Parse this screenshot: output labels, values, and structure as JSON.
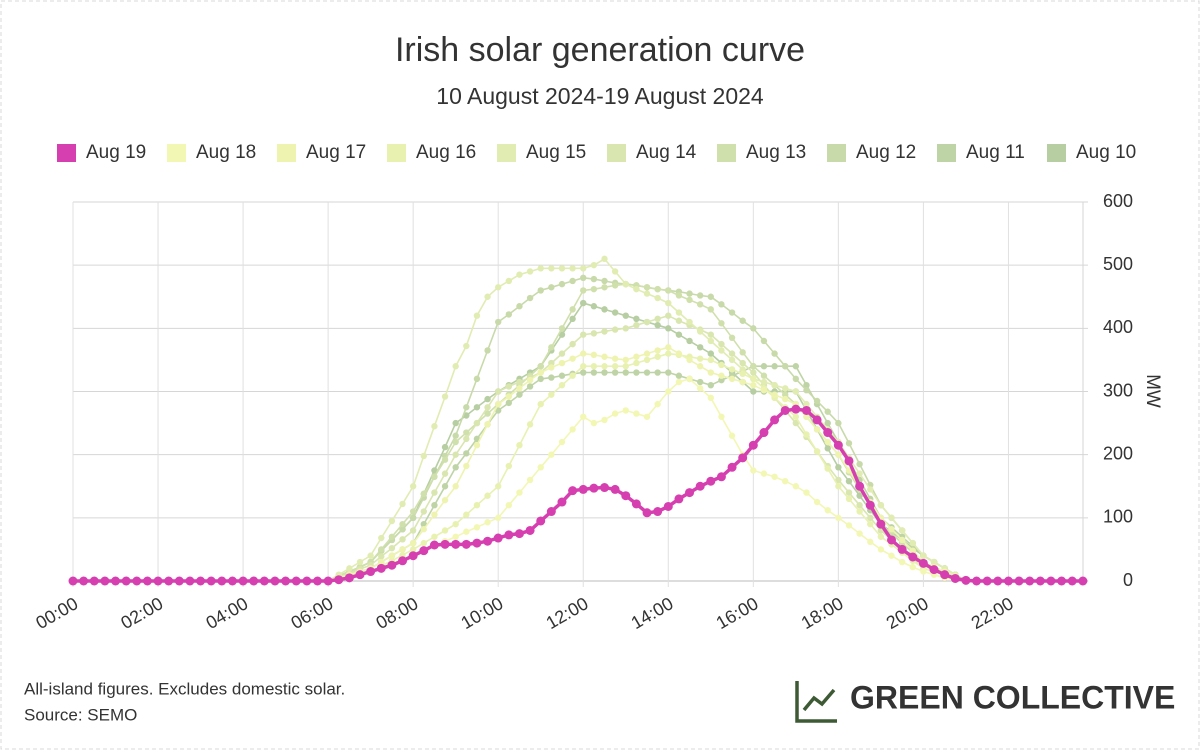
{
  "chart_data": {
    "type": "line",
    "title": "Irish solar generation curve",
    "subtitle": "10 August 2024-19 August 2024",
    "y_label": "MW",
    "notes": [
      "All-island figures. Excludes domestic solar.",
      "Source: SEMO"
    ],
    "brand": "GREEN COLLECTIVE",
    "ylim": [
      0,
      600
    ],
    "yticks": [
      0,
      100,
      200,
      300,
      400,
      500,
      600
    ],
    "grid": true,
    "legend": "top",
    "categories": [
      "00:00",
      null,
      null,
      null,
      null,
      null,
      null,
      null,
      "02:00",
      null,
      null,
      null,
      null,
      null,
      null,
      null,
      "04:00",
      null,
      null,
      null,
      null,
      null,
      null,
      null,
      "06:00",
      null,
      null,
      null,
      null,
      null,
      null,
      null,
      "08:00",
      null,
      null,
      null,
      null,
      null,
      null,
      null,
      "10:00",
      null,
      null,
      null,
      null,
      null,
      null,
      null,
      "12:00",
      null,
      null,
      null,
      null,
      null,
      null,
      null,
      "14:00",
      null,
      null,
      null,
      null,
      null,
      null,
      null,
      "16:00",
      null,
      null,
      null,
      null,
      null,
      null,
      null,
      "18:00",
      null,
      null,
      null,
      null,
      null,
      null,
      null,
      "20:00",
      null,
      null,
      null,
      null,
      null,
      null,
      null,
      "22:00",
      null,
      null,
      null,
      null,
      null,
      null,
      null
    ],
    "series": [
      {
        "name": "Aug 19",
        "color": "#d63fb0",
        "values": [
          0,
          0,
          0,
          0,
          0,
          0,
          0,
          0,
          0,
          0,
          0,
          0,
          0,
          0,
          0,
          0,
          0,
          0,
          0,
          0,
          0,
          0,
          0,
          0,
          0,
          2,
          5,
          10,
          15,
          20,
          25,
          32,
          40,
          48,
          57,
          58,
          58,
          58,
          60,
          63,
          68,
          73,
          75,
          80,
          95,
          110,
          125,
          143,
          145,
          147,
          148,
          145,
          135,
          122,
          108,
          110,
          118,
          130,
          140,
          150,
          158,
          165,
          180,
          195,
          215,
          235,
          255,
          270,
          272,
          270,
          255,
          235,
          215,
          190,
          150,
          120,
          90,
          65,
          50,
          38,
          28,
          18,
          10,
          4,
          1,
          0,
          0,
          0,
          0,
          0,
          0,
          0,
          0,
          0,
          0,
          0
        ]
      },
      {
        "name": "Aug 18",
        "color": "#f3f7b4",
        "values": [
          0,
          0,
          0,
          0,
          0,
          0,
          0,
          0,
          0,
          0,
          0,
          0,
          0,
          0,
          0,
          0,
          0,
          0,
          0,
          0,
          0,
          0,
          0,
          0,
          0,
          4,
          8,
          11,
          15,
          21,
          28,
          34,
          40,
          48,
          55,
          63,
          70,
          78,
          85,
          93,
          100,
          120,
          140,
          160,
          180,
          200,
          220,
          240,
          260,
          250,
          255,
          265,
          270,
          265,
          260,
          280,
          300,
          315,
          320,
          305,
          290,
          260,
          230,
          200,
          175,
          170,
          165,
          158,
          150,
          140,
          125,
          112,
          100,
          88,
          75,
          62,
          50,
          40,
          30,
          22,
          15,
          10,
          5,
          2,
          0,
          0,
          0,
          0,
          0,
          0,
          0,
          0,
          0,
          0,
          0,
          0
        ]
      },
      {
        "name": "Aug 17",
        "color": "#eef4b0",
        "values": [
          0,
          0,
          0,
          0,
          0,
          0,
          0,
          0,
          0,
          0,
          0,
          0,
          0,
          0,
          0,
          0,
          0,
          0,
          0,
          0,
          0,
          0,
          0,
          0,
          0,
          5,
          10,
          15,
          20,
          30,
          40,
          50,
          60,
          82,
          105,
          128,
          150,
          182,
          215,
          248,
          280,
          292,
          305,
          318,
          330,
          338,
          345,
          352,
          360,
          358,
          355,
          352,
          350,
          355,
          360,
          365,
          370,
          360,
          350,
          340,
          330,
          325,
          320,
          315,
          310,
          302,
          295,
          288,
          280,
          260,
          240,
          220,
          200,
          175,
          150,
          125,
          100,
          82,
          65,
          48,
          30,
          22,
          15,
          8,
          0,
          0,
          0,
          0,
          0,
          0,
          0,
          0,
          0,
          0,
          0,
          0
        ]
      },
      {
        "name": "Aug 16",
        "color": "#e8f1b0",
        "values": [
          0,
          0,
          0,
          0,
          0,
          0,
          0,
          0,
          0,
          0,
          0,
          0,
          0,
          0,
          0,
          0,
          0,
          0,
          0,
          0,
          0,
          0,
          0,
          0,
          0,
          4,
          8,
          11,
          15,
          24,
          32,
          41,
          50,
          60,
          70,
          80,
          90,
          105,
          120,
          135,
          150,
          182,
          215,
          248,
          280,
          295,
          310,
          325,
          340,
          340,
          340,
          340,
          340,
          345,
          350,
          355,
          360,
          358,
          355,
          352,
          350,
          342,
          335,
          328,
          320,
          305,
          290,
          275,
          260,
          232,
          205,
          178,
          150,
          130,
          110,
          90,
          70,
          58,
          45,
          32,
          20,
          15,
          10,
          5,
          0,
          0,
          0,
          0,
          0,
          0,
          0,
          0,
          0,
          0,
          0,
          0
        ]
      },
      {
        "name": "Aug 15",
        "color": "#e1ecb2",
        "values": [
          0,
          0,
          0,
          0,
          0,
          0,
          0,
          0,
          0,
          0,
          0,
          0,
          0,
          0,
          0,
          0,
          0,
          0,
          0,
          0,
          0,
          0,
          0,
          0,
          0,
          10,
          20,
          30,
          40,
          68,
          95,
          122,
          150,
          198,
          245,
          292,
          340,
          372,
          420,
          450,
          465,
          475,
          485,
          490,
          495,
          495,
          495,
          495,
          495,
          500,
          510,
          490,
          470,
          462,
          455,
          448,
          440,
          425,
          410,
          395,
          380,
          365,
          350,
          335,
          320,
          315,
          310,
          305,
          300,
          280,
          260,
          240,
          220,
          195,
          170,
          145,
          120,
          100,
          80,
          60,
          40,
          30,
          20,
          10,
          0,
          0,
          0,
          0,
          0,
          0,
          0,
          0,
          0,
          0,
          0,
          0
        ]
      },
      {
        "name": "Aug 14",
        "color": "#d9e6af",
        "values": [
          0,
          0,
          0,
          0,
          0,
          0,
          0,
          0,
          0,
          0,
          0,
          0,
          0,
          0,
          0,
          0,
          0,
          0,
          0,
          0,
          0,
          0,
          0,
          0,
          0,
          6,
          12,
          19,
          25,
          39,
          52,
          66,
          80,
          110,
          140,
          170,
          200,
          225,
          250,
          275,
          300,
          308,
          315,
          322,
          330,
          345,
          360,
          375,
          390,
          392,
          395,
          398,
          400,
          405,
          410,
          415,
          420,
          412,
          405,
          398,
          390,
          375,
          360,
          345,
          330,
          310,
          290,
          270,
          250,
          228,
          205,
          182,
          160,
          140,
          120,
          100,
          80,
          65,
          50,
          35,
          20,
          15,
          10,
          5,
          0,
          0,
          0,
          0,
          0,
          0,
          0,
          0,
          0,
          0,
          0,
          0
        ]
      },
      {
        "name": "Aug 13",
        "color": "#d0e0ac",
        "values": [
          0,
          0,
          0,
          0,
          0,
          0,
          0,
          0,
          0,
          0,
          0,
          0,
          0,
          0,
          0,
          0,
          0,
          0,
          0,
          0,
          0,
          0,
          0,
          0,
          0,
          8,
          15,
          22,
          30,
          50,
          70,
          90,
          110,
          138,
          165,
          192,
          220,
          235,
          250,
          265,
          280,
          295,
          310,
          325,
          340,
          370,
          400,
          430,
          460,
          462,
          465,
          468,
          470,
          468,
          465,
          462,
          460,
          452,
          445,
          438,
          430,
          408,
          385,
          362,
          340,
          325,
          310,
          295,
          280,
          260,
          240,
          220,
          200,
          172,
          145,
          118,
          90,
          75,
          60,
          45,
          30,
          22,
          15,
          8,
          0,
          0,
          0,
          0,
          0,
          0,
          0,
          0,
          0,
          0,
          0,
          0
        ]
      },
      {
        "name": "Aug 12",
        "color": "#c8daa9",
        "values": [
          0,
          0,
          0,
          0,
          0,
          0,
          0,
          0,
          0,
          0,
          0,
          0,
          0,
          0,
          0,
          0,
          0,
          0,
          0,
          0,
          0,
          0,
          0,
          0,
          0,
          8,
          15,
          22,
          30,
          48,
          65,
          82,
          100,
          132,
          165,
          198,
          230,
          275,
          320,
          365,
          410,
          422,
          435,
          448,
          460,
          465,
          470,
          475,
          480,
          478,
          475,
          472,
          470,
          468,
          465,
          462,
          460,
          458,
          455,
          452,
          450,
          438,
          425,
          412,
          400,
          380,
          360,
          340,
          320,
          302,
          285,
          268,
          250,
          218,
          185,
          152,
          120,
          100,
          80,
          60,
          40,
          30,
          20,
          10,
          0,
          0,
          0,
          0,
          0,
          0,
          0,
          0,
          0,
          0,
          0,
          0
        ]
      },
      {
        "name": "Aug 11",
        "color": "#bfd4a6",
        "values": [
          0,
          0,
          0,
          0,
          0,
          0,
          0,
          0,
          0,
          0,
          0,
          0,
          0,
          0,
          0,
          0,
          0,
          0,
          0,
          0,
          0,
          0,
          0,
          0,
          0,
          5,
          10,
          15,
          20,
          30,
          40,
          50,
          60,
          90,
          120,
          150,
          180,
          202,
          225,
          248,
          270,
          282,
          295,
          308,
          320,
          322,
          325,
          328,
          330,
          330,
          330,
          330,
          330,
          330,
          330,
          330,
          330,
          325,
          320,
          315,
          310,
          318,
          325,
          332,
          340,
          340,
          340,
          340,
          340,
          310,
          280,
          250,
          220,
          190,
          160,
          130,
          100,
          85,
          70,
          55,
          40,
          30,
          20,
          10,
          0,
          0,
          0,
          0,
          0,
          0,
          0,
          0,
          0,
          0,
          0,
          0
        ]
      },
      {
        "name": "Aug 10",
        "color": "#b6cea2",
        "values": [
          0,
          0,
          0,
          0,
          0,
          0,
          0,
          0,
          0,
          0,
          0,
          0,
          0,
          0,
          0,
          0,
          0,
          0,
          0,
          0,
          0,
          0,
          0,
          0,
          0,
          8,
          15,
          22,
          30,
          48,
          65,
          82,
          100,
          138,
          175,
          212,
          250,
          262,
          275,
          288,
          300,
          310,
          320,
          330,
          340,
          365,
          390,
          415,
          440,
          435,
          430,
          425,
          420,
          415,
          410,
          405,
          400,
          390,
          380,
          370,
          360,
          345,
          330,
          315,
          300,
          300,
          300,
          300,
          300,
          270,
          240,
          210,
          180,
          158,
          135,
          112,
          90,
          78,
          65,
          52,
          40,
          30,
          20,
          10,
          0,
          0,
          0,
          0,
          0,
          0,
          0,
          0,
          0,
          0,
          0,
          0
        ]
      }
    ]
  }
}
